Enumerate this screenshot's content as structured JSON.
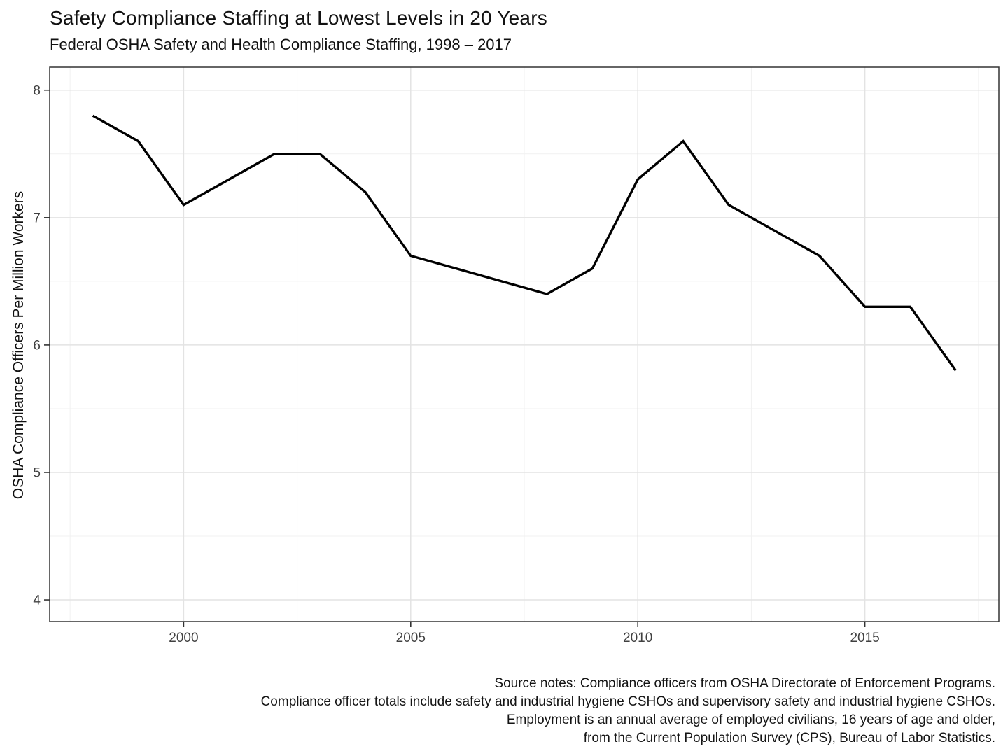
{
  "chart_data": {
    "type": "line",
    "title": "Safety Compliance Staffing at Lowest Levels in 20 Years",
    "subtitle": "Federal OSHA Safety and Health Compliance Staffing, 1998 – 2017",
    "xlabel": "",
    "ylabel": "OSHA Compliance Officers Per Million Workers",
    "x": [
      1998,
      1999,
      2000,
      2001,
      2002,
      2003,
      2004,
      2005,
      2006,
      2007,
      2008,
      2009,
      2010,
      2011,
      2012,
      2013,
      2014,
      2015,
      2016,
      2017
    ],
    "series": [
      {
        "name": "OSHA compliance officers per million workers",
        "values": [
          7.8,
          7.6,
          7.1,
          7.3,
          7.5,
          7.5,
          7.2,
          6.7,
          6.6,
          6.5,
          6.4,
          6.6,
          7.3,
          7.6,
          7.1,
          6.9,
          6.7,
          6.3,
          6.3,
          5.8
        ]
      }
    ],
    "xlim": [
      1997.05,
      2017.95
    ],
    "ylim": [
      3.83,
      8.18
    ],
    "x_ticks": [
      2000,
      2005,
      2010,
      2015
    ],
    "y_ticks": [
      4,
      5,
      6,
      7,
      8
    ],
    "x_minor": [
      1997.5,
      2002.5,
      2007.5,
      2012.5,
      2017.5
    ],
    "y_minor": [
      4.5,
      5.5,
      6.5,
      7.5
    ],
    "grid": "major and minor, light gray on white panel",
    "legend_position": "none",
    "style": {
      "line_color": "#000000",
      "grid_major_color": "#e3e3e3",
      "grid_minor_color": "#f1f1f1",
      "panel_border_color": "#333333",
      "tick_color": "#333333",
      "axis_text_color": "#404040",
      "text_color": "#111111"
    },
    "caption_lines": [
      "Source notes: Compliance officers from OSHA Directorate of Enforcement Programs.",
      "Compliance officer totals include safety and industrial hygiene CSHOs and supervisory safety and industrial hygiene CSHOs.",
      "Employment is an annual average of employed civilians, 16 years of age and older,",
      "from the Current Population Survey (CPS), Bureau of Labor Statistics."
    ]
  }
}
